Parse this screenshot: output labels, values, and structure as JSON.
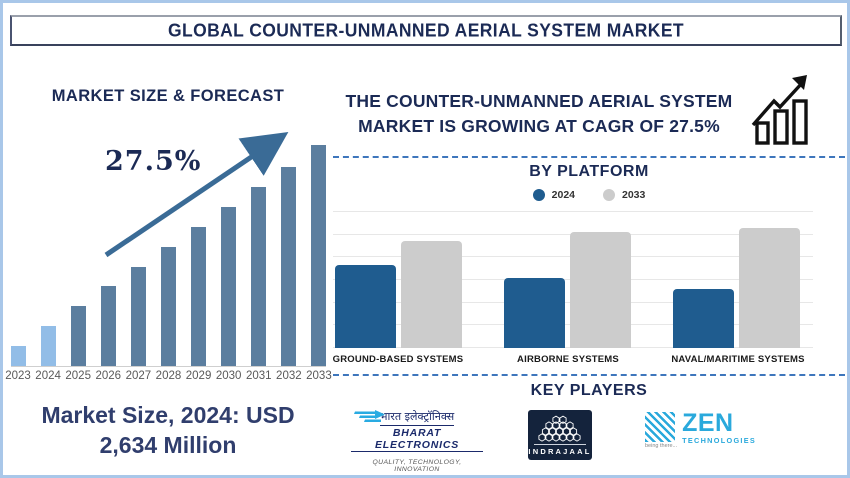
{
  "banner": {
    "title": "GLOBAL COUNTER-UNMANNED AERIAL SYSTEM MARKET"
  },
  "forecast": {
    "heading": "MARKET SIZE & FORECAST",
    "growth_label": "27.5%",
    "market_size_line1": "Market Size, 2024: USD",
    "market_size_line2": "2,634 Million"
  },
  "cagr_banner": {
    "line1": "THE COUNTER-UNMANNED AERIAL SYSTEM",
    "line2": "MARKET IS GROWING AT CAGR OF 27.5%"
  },
  "platform_section": {
    "title": "BY PLATFORM",
    "legend": [
      {
        "label": "2024",
        "color": "#1f5c8f"
      },
      {
        "label": "2033",
        "color": "#cccccc"
      }
    ]
  },
  "key_players": {
    "title": "KEY PLAYERS",
    "bharat": {
      "hindi": "भारत इलेक्ट्रॉनिक्स",
      "name": "BHARAT ELECTRONICS",
      "tagline": "QUALITY, TECHNOLOGY, INNOVATION"
    },
    "indrajaal": {
      "name": "INDRAJAAL"
    },
    "zen": {
      "name": "ZEN",
      "sub": "TECHNOLOGIES",
      "tagline": "being there..."
    }
  },
  "colors": {
    "navy_text": "#1b2a55",
    "bar_light_blue": "#92bde7",
    "bar_steel_blue": "#5b7e9f",
    "bar_blue_2024": "#1f5c8f",
    "bar_gray_2033": "#cccccc",
    "dashed_line": "#3e76bc",
    "outer_border": "#a9c7e9",
    "trend_arrow": "#3a6b96"
  },
  "chart_data": [
    {
      "type": "bar",
      "title": "MARKET SIZE & FORECAST",
      "categories": [
        "2023",
        "2024",
        "2025",
        "2026",
        "2027",
        "2028",
        "2029",
        "2030",
        "2031",
        "2032",
        "2033"
      ],
      "values": [
        9,
        18,
        27,
        36,
        45,
        54,
        63,
        72,
        81,
        90,
        100
      ],
      "unit": "relative bar height, % of 2033 bar (no y-axis shown)",
      "known_point": {
        "year": "2024",
        "value_usd_million": 2634
      },
      "annotation": "27.5% CAGR trend arrow",
      "highlight_first_n": 2,
      "xlabel": "",
      "ylabel": "",
      "grid": false,
      "legend_position": "none"
    },
    {
      "type": "bar",
      "title": "BY PLATFORM",
      "categories": [
        "GROUND-BASED SYSTEMS",
        "AIRBORNE SYSTEMS",
        "NAVAL/MARITIME SYSTEMS"
      ],
      "series": [
        {
          "name": "2024",
          "color": "#1f5c8f",
          "values": [
            69,
            58,
            49
          ]
        },
        {
          "name": "2033",
          "color": "#cccccc",
          "values": [
            89,
            97,
            100
          ]
        }
      ],
      "unit": "relative bar height, % of tallest bar (no y-axis shown)",
      "xlabel": "",
      "ylabel": "",
      "grid": true,
      "legend_position": "top"
    }
  ]
}
